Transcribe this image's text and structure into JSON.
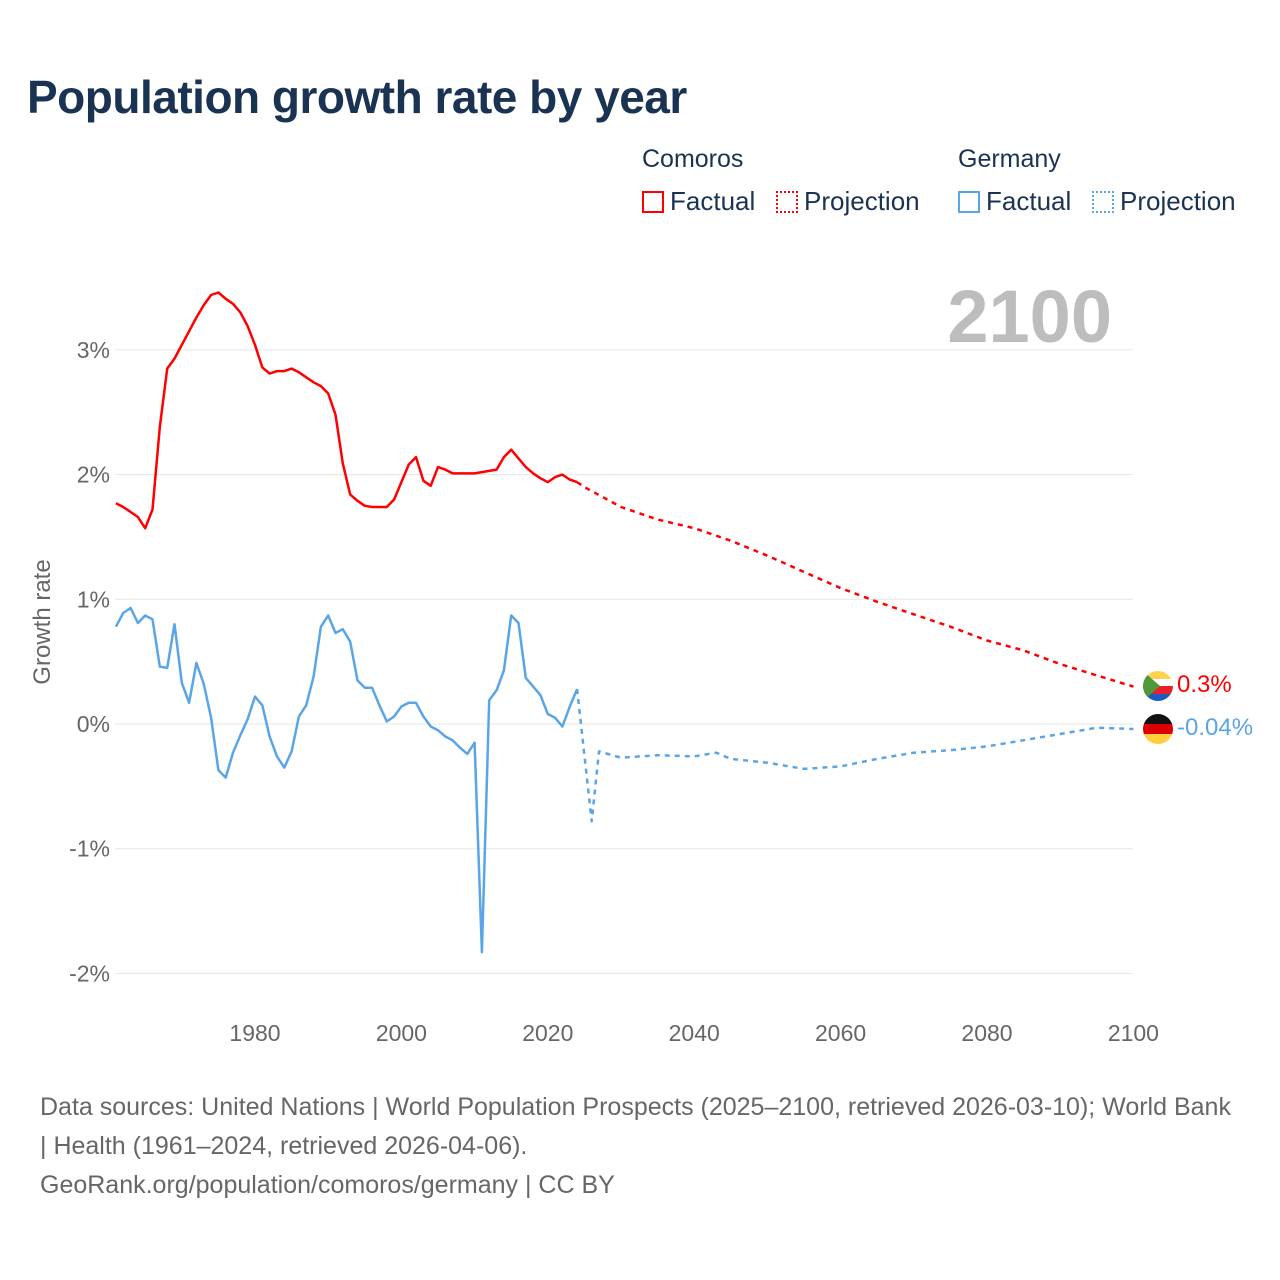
{
  "title": "Population growth rate by year",
  "legend": {
    "groups": [
      {
        "name": "Comoros",
        "color": "#ff0000",
        "items": [
          "Factual",
          "Projection"
        ]
      },
      {
        "name": "Germany",
        "color": "#5aa5e8",
        "items": [
          "Factual",
          "Projection"
        ]
      }
    ]
  },
  "current_year_label": "2100",
  "end_labels": {
    "comoros": "0.3%",
    "germany": "-0.04%"
  },
  "footer": {
    "sources": "Data sources: United Nations | World Population Prospects (2025–2100, retrieved 2026-03-10); World Bank | Health (1961–2024, retrieved 2026-04-06).",
    "credit": "GeoRank.org/population/comoros/germany | CC BY"
  },
  "chart_data": {
    "type": "line",
    "title": "Population growth rate by year",
    "xlabel": "",
    "ylabel": "Growth rate",
    "xlim": [
      1960,
      2100
    ],
    "ylim": [
      -2.2,
      3.6
    ],
    "x_ticks": [
      1980,
      2000,
      2020,
      2040,
      2060,
      2080,
      2100
    ],
    "y_ticks": [
      {
        "v": 3,
        "label": "3%"
      },
      {
        "v": 2,
        "label": "2%"
      },
      {
        "v": 1,
        "label": "1%"
      },
      {
        "v": 0,
        "label": "0%"
      },
      {
        "v": -1,
        "label": "-1%"
      },
      {
        "v": -2,
        "label": "-2%"
      }
    ],
    "grid": true,
    "series": [
      {
        "name": "Comoros Factual",
        "color": "#ff0000",
        "dashed": false,
        "x0": 1961,
        "values": [
          1.77,
          1.74,
          1.7,
          1.66,
          1.57,
          1.72,
          2.38,
          2.85,
          2.93,
          3.04,
          3.15,
          3.26,
          3.36,
          3.44,
          3.46,
          3.41,
          3.37,
          3.3,
          3.19,
          3.04,
          2.86,
          2.81,
          2.83,
          2.83,
          2.85,
          2.82,
          2.78,
          2.74,
          2.71,
          2.65,
          2.48,
          2.09,
          1.84,
          1.79,
          1.75,
          1.74,
          1.74,
          1.74,
          1.8,
          1.94,
          2.08,
          2.14,
          1.95,
          1.91,
          2.06,
          2.04,
          2.01,
          2.01,
          2.01,
          2.01,
          2.02,
          2.03,
          2.04,
          2.14,
          2.2,
          2.13,
          2.06,
          2.01,
          1.97,
          1.94,
          1.98,
          2.0,
          1.96,
          1.94
        ]
      },
      {
        "name": "Comoros Projection",
        "color": "#ff0000",
        "dashed": true,
        "points": [
          [
            2024,
            1.94
          ],
          [
            2025,
            1.9
          ],
          [
            2030,
            1.74
          ],
          [
            2035,
            1.64
          ],
          [
            2040,
            1.57
          ],
          [
            2045,
            1.47
          ],
          [
            2050,
            1.35
          ],
          [
            2055,
            1.22
          ],
          [
            2060,
            1.09
          ],
          [
            2065,
            0.98
          ],
          [
            2070,
            0.88
          ],
          [
            2075,
            0.78
          ],
          [
            2080,
            0.67
          ],
          [
            2085,
            0.59
          ],
          [
            2090,
            0.48
          ],
          [
            2095,
            0.39
          ],
          [
            2100,
            0.3
          ]
        ]
      },
      {
        "name": "Germany Factual",
        "color": "#5aa5e8",
        "dashed": false,
        "x0": 1961,
        "values": [
          0.78,
          0.89,
          0.93,
          0.81,
          0.87,
          0.84,
          0.46,
          0.45,
          0.8,
          0.33,
          0.17,
          0.49,
          0.32,
          0.05,
          -0.37,
          -0.43,
          -0.23,
          -0.09,
          0.04,
          0.22,
          0.15,
          -0.1,
          -0.26,
          -0.35,
          -0.22,
          0.06,
          0.15,
          0.38,
          0.78,
          0.87,
          0.73,
          0.76,
          0.66,
          0.35,
          0.29,
          0.29,
          0.15,
          0.02,
          0.06,
          0.14,
          0.17,
          0.17,
          0.06,
          -0.02,
          -0.05,
          -0.1,
          -0.13,
          -0.19,
          -0.24,
          -0.15,
          -1.83,
          0.19,
          0.27,
          0.43,
          0.87,
          0.81,
          0.37,
          0.3,
          0.23,
          0.08,
          0.05,
          -0.02,
          0.14,
          0.28
        ]
      },
      {
        "name": "Germany Projection",
        "color": "#5aa5e8",
        "dashed": true,
        "points": [
          [
            2024,
            0.28
          ],
          [
            2025,
            -0.25
          ],
          [
            2026,
            -0.78
          ],
          [
            2027,
            -0.22
          ],
          [
            2030,
            -0.27
          ],
          [
            2035,
            -0.25
          ],
          [
            2040,
            -0.26
          ],
          [
            2043,
            -0.23
          ],
          [
            2045,
            -0.28
          ],
          [
            2050,
            -0.31
          ],
          [
            2055,
            -0.36
          ],
          [
            2060,
            -0.34
          ],
          [
            2065,
            -0.28
          ],
          [
            2070,
            -0.23
          ],
          [
            2075,
            -0.21
          ],
          [
            2080,
            -0.18
          ],
          [
            2085,
            -0.13
          ],
          [
            2090,
            -0.08
          ],
          [
            2095,
            -0.03
          ],
          [
            2100,
            -0.04
          ]
        ]
      }
    ]
  }
}
